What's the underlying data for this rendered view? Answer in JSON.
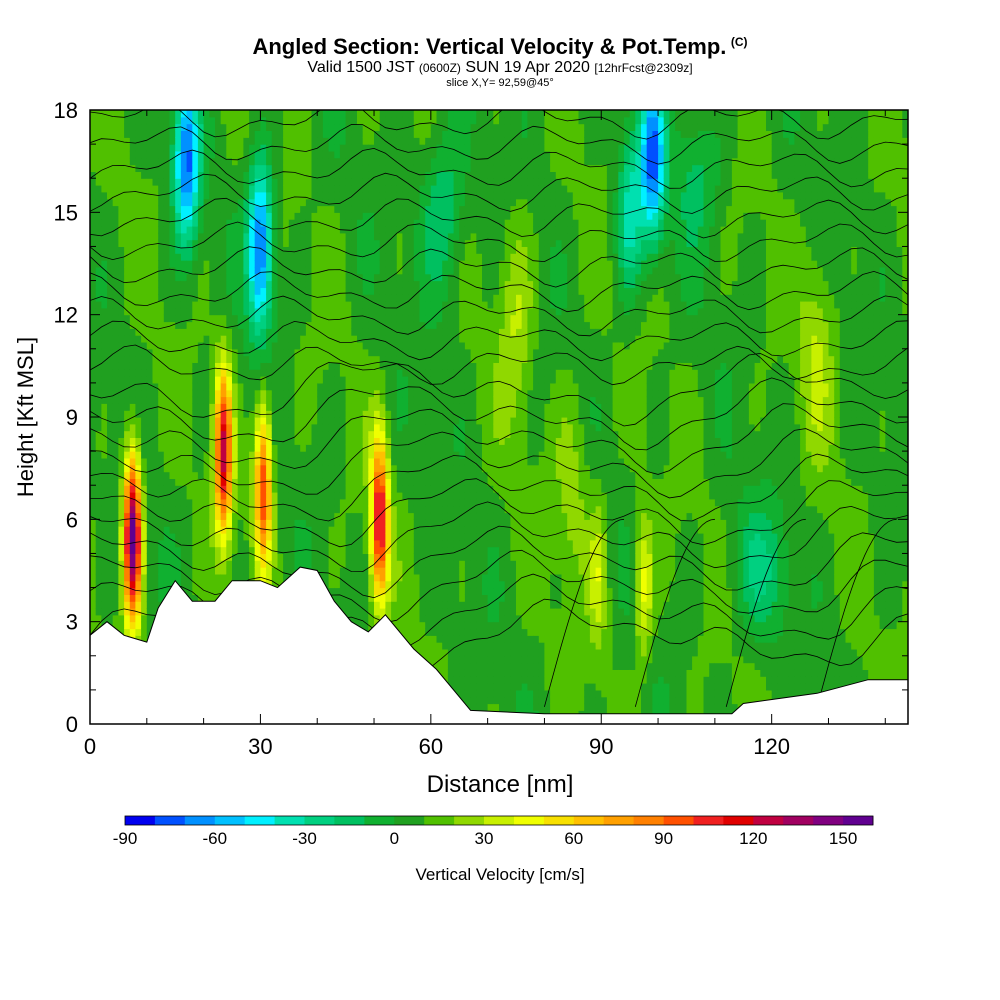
{
  "header": {
    "title": "Angled Section: Vertical Velocity & Pot.Temp.",
    "copyright": "(C)",
    "valid_prefix": "Valid 1500 JST",
    "valid_utc": "(0600Z)",
    "valid_date": "SUN 19 Apr 2020",
    "forecast": "[12hrFcst@2309z]",
    "slice": "slice X,Y= 92,59@45°"
  },
  "chart_data": {
    "type": "heatmap",
    "xlabel": "Distance [nm]",
    "ylabel": "Height [Kft MSL]",
    "xlim": [
      0,
      144
    ],
    "ylim": [
      0,
      18
    ],
    "xticks": [
      0,
      30,
      60,
      90,
      120
    ],
    "yticks": [
      0,
      3,
      6,
      9,
      12,
      15,
      18
    ],
    "colorbar": {
      "label": "Vertical Velocity [cm/s]",
      "min": -90,
      "max": 160,
      "step": 10,
      "tick_labels": [
        "-90",
        "-60",
        "-30",
        "0",
        "30",
        "60",
        "90",
        "120",
        "150"
      ],
      "colors": [
        "#0000f0",
        "#0050ff",
        "#0090ff",
        "#00c0ff",
        "#00f0ff",
        "#00e0b0",
        "#00d080",
        "#00c060",
        "#10b030",
        "#20a020",
        "#50c000",
        "#90d800",
        "#c8f000",
        "#f0ff00",
        "#f8e000",
        "#ffc000",
        "#ffa000",
        "#ff8000",
        "#ff5000",
        "#f02020",
        "#e00000",
        "#c00040",
        "#a00060",
        "#800080",
        "#600090"
      ]
    },
    "terrain_kft": [
      [
        0,
        2.6
      ],
      [
        3,
        3.0
      ],
      [
        6,
        2.6
      ],
      [
        10,
        2.4
      ],
      [
        12,
        3.4
      ],
      [
        15,
        4.2
      ],
      [
        18,
        3.6
      ],
      [
        22,
        3.6
      ],
      [
        25,
        4.2
      ],
      [
        30,
        4.2
      ],
      [
        33,
        4.0
      ],
      [
        37,
        4.6
      ],
      [
        40,
        4.5
      ],
      [
        43,
        3.6
      ],
      [
        46,
        3.0
      ],
      [
        49,
        2.7
      ],
      [
        52,
        3.2
      ],
      [
        57,
        2.2
      ],
      [
        61,
        1.6
      ],
      [
        64,
        1.0
      ],
      [
        67,
        0.4
      ],
      [
        80,
        0.3
      ],
      [
        100,
        0.3
      ],
      [
        113,
        0.3
      ],
      [
        115,
        0.6
      ],
      [
        128,
        0.9
      ],
      [
        137,
        1.3
      ],
      [
        144,
        1.3
      ]
    ],
    "updraft_cores": [
      {
        "x_nm": 7.5,
        "z_kft": 5.5,
        "peak_cm_s": 155
      },
      {
        "x_nm": 23.5,
        "z_kft": 8.0,
        "peak_cm_s": 120
      },
      {
        "x_nm": 30.5,
        "z_kft": 7.0,
        "peak_cm_s": 100
      },
      {
        "x_nm": 51.0,
        "z_kft": 6.0,
        "peak_cm_s": 115
      },
      {
        "x_nm": 89.5,
        "z_kft": 4.5,
        "peak_cm_s": 35
      },
      {
        "x_nm": 97.5,
        "z_kft": 4.0,
        "peak_cm_s": 45
      }
    ],
    "downdraft_cores": [
      {
        "x_nm": 17.0,
        "z_kft": 16.5,
        "peak_cm_s": -70
      },
      {
        "x_nm": 30.0,
        "z_kft": 14.0,
        "peak_cm_s": -75
      },
      {
        "x_nm": 99.0,
        "z_kft": 16.5,
        "peak_cm_s": -70
      },
      {
        "x_nm": 95.0,
        "z_kft": 15.0,
        "peak_cm_s": -35
      }
    ]
  }
}
